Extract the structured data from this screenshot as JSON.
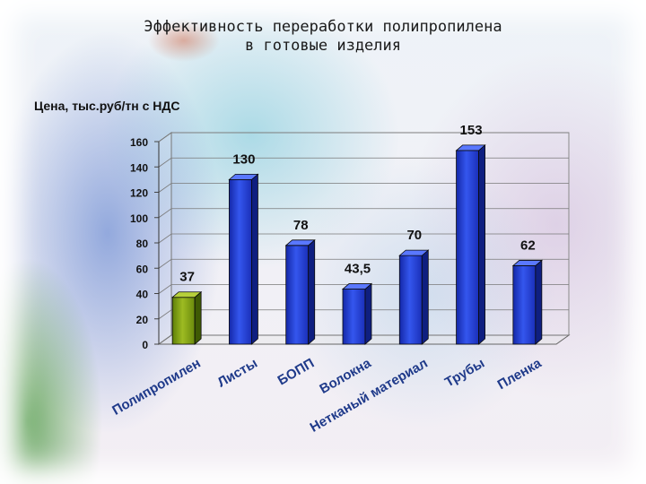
{
  "title_lines": [
    "Эффективность переработки полипропилена",
    "в готовые изделия"
  ],
  "chart_data": {
    "type": "bar",
    "ylabel": "Цена, тыс.руб/тн с НДС",
    "ylim": [
      0,
      160
    ],
    "yticks": [
      "0",
      "20",
      "40",
      "60",
      "80",
      "100",
      "120",
      "140",
      "160"
    ],
    "grid": true,
    "categories": [
      "Полипропилен",
      "Листы",
      "БОПП",
      "Волокна",
      "Нетканый материал",
      "Трубы",
      "Пленка"
    ],
    "values": [
      37,
      130,
      78,
      43.5,
      70,
      153,
      62
    ],
    "value_labels": [
      "37",
      "130",
      "78",
      "43,5",
      "70",
      "153",
      "62"
    ],
    "colors": {
      "highlight_bar": "#7a9a10",
      "bar": "#1e36c8",
      "value_text": "#111111",
      "label_text": "#1f3a8a"
    }
  }
}
